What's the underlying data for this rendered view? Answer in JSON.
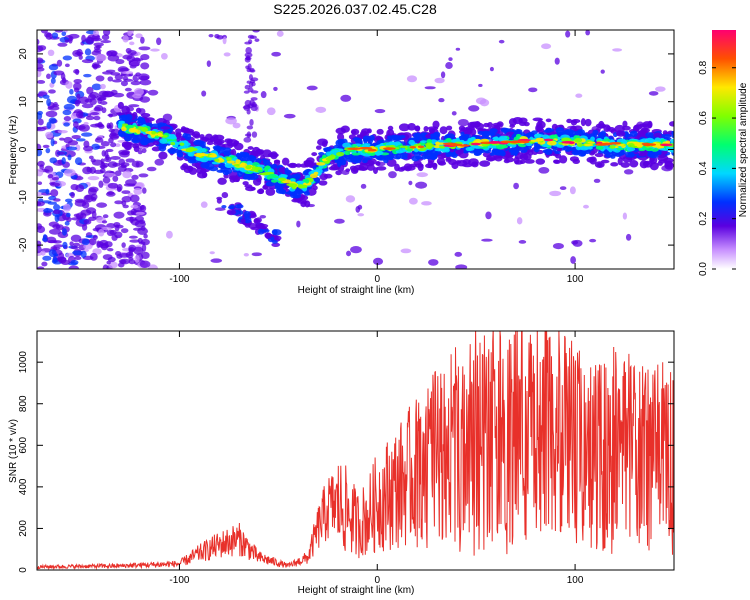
{
  "title": "S225.2026.037.02.45.C28",
  "chart_data": [
    {
      "type": "heatmap",
      "title": "S225.2026.037.02.45.C28",
      "xlabel": "Height of straight line (km)",
      "ylabel": "Frequency (Hz)",
      "xlim": [
        -172,
        150
      ],
      "ylim": [
        -25,
        25
      ],
      "xticks": [
        -100,
        0,
        100
      ],
      "yticks": [
        -20,
        -10,
        0,
        10,
        20
      ],
      "colorbar": {
        "label": "Normalized spectral amplitude",
        "range": [
          0,
          0.95
        ],
        "ticks": [
          0.0,
          0.2,
          0.4,
          0.6,
          0.8
        ],
        "tick_labels": [
          "0.0",
          "0.2",
          "0.4",
          "0.6",
          "0.8"
        ]
      },
      "ridge": {
        "height_km": [
          -130,
          -110,
          -90,
          -70,
          -55,
          -45,
          -38,
          -33,
          -28,
          -22,
          -15,
          -5,
          0,
          20,
          40,
          60,
          80,
          100,
          120,
          150
        ],
        "frequency_hz": [
          5,
          3,
          -1,
          -3,
          -5,
          -7,
          -8,
          -6,
          -3,
          -1,
          0,
          0,
          0,
          0.5,
          1,
          1.5,
          2,
          1.5,
          1,
          1
        ]
      },
      "branch": {
        "height_km": [
          -80,
          -70,
          -60,
          -50
        ],
        "frequency_hz": [
          -10,
          -13,
          -16,
          -19
        ]
      }
    },
    {
      "type": "line",
      "xlabel": "Height of straight line (km)",
      "ylabel": "SNR (10 * v/v)",
      "xlim": [
        -172,
        150
      ],
      "ylim": [
        0,
        1150
      ],
      "xticks": [
        -100,
        0,
        100
      ],
      "yticks": [
        0,
        200,
        400,
        600,
        800,
        1000
      ],
      "color": "#e8302a",
      "envelope": {
        "height_km": [
          -172,
          -130,
          -100,
          -90,
          -80,
          -70,
          -60,
          -45,
          -35,
          -30,
          -25,
          -20,
          -15,
          -10,
          -5,
          0,
          10,
          20,
          30,
          40,
          50,
          60,
          70,
          80,
          90,
          100,
          110,
          120,
          130,
          140,
          150
        ],
        "snr": [
          15,
          20,
          30,
          80,
          120,
          150,
          60,
          20,
          60,
          200,
          300,
          320,
          280,
          220,
          250,
          330,
          400,
          480,
          560,
          620,
          680,
          700,
          700,
          690,
          680,
          660,
          640,
          620,
          600,
          580,
          560
        ]
      }
    }
  ]
}
